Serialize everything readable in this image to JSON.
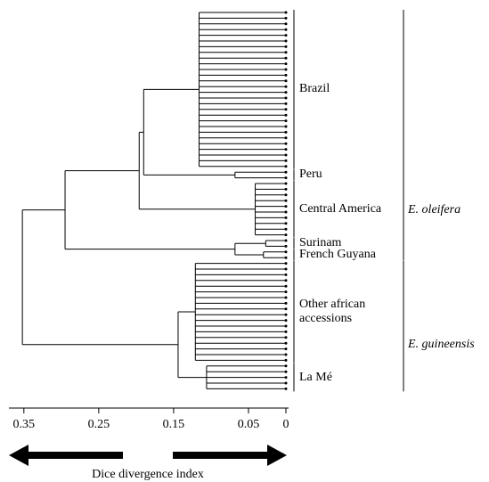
{
  "chart_data": {
    "type": "dendrogram",
    "xlabel": "Dice divergence index",
    "xlim": [
      0.37,
      0
    ],
    "xticks": [
      0.35,
      0.25,
      0.15,
      0.05,
      0
    ],
    "tree": {
      "height": 0.352,
      "children": [
        {
          "label": "E. oleifera",
          "height": 0.295,
          "children": [
            {
              "height": 0.196,
              "children": [
                {
                  "height": 0.19,
                  "children": [
                    {
                      "label": "Brazil",
                      "height": 0.116,
                      "leaves": 28
                    },
                    {
                      "label": "Peru",
                      "height": 0.068,
                      "leaves": 2
                    }
                  ]
                },
                {
                  "label": "Central America",
                  "height": 0.041,
                  "leaves": 10
                }
              ]
            },
            {
              "height": 0.068,
              "children": [
                {
                  "label": "Surinam",
                  "height": 0.027,
                  "leaves": 2
                },
                {
                  "label": "French Guyana",
                  "height": 0.03,
                  "leaves": 2
                }
              ]
            }
          ]
        },
        {
          "label": "E. guineensis",
          "height": 0.144,
          "children": [
            {
              "label": "Other african accessions",
              "height": 0.121,
              "leaves": 18
            },
            {
              "label": "La Mé",
              "height": 0.106,
              "leaves": 5
            }
          ]
        }
      ]
    }
  }
}
